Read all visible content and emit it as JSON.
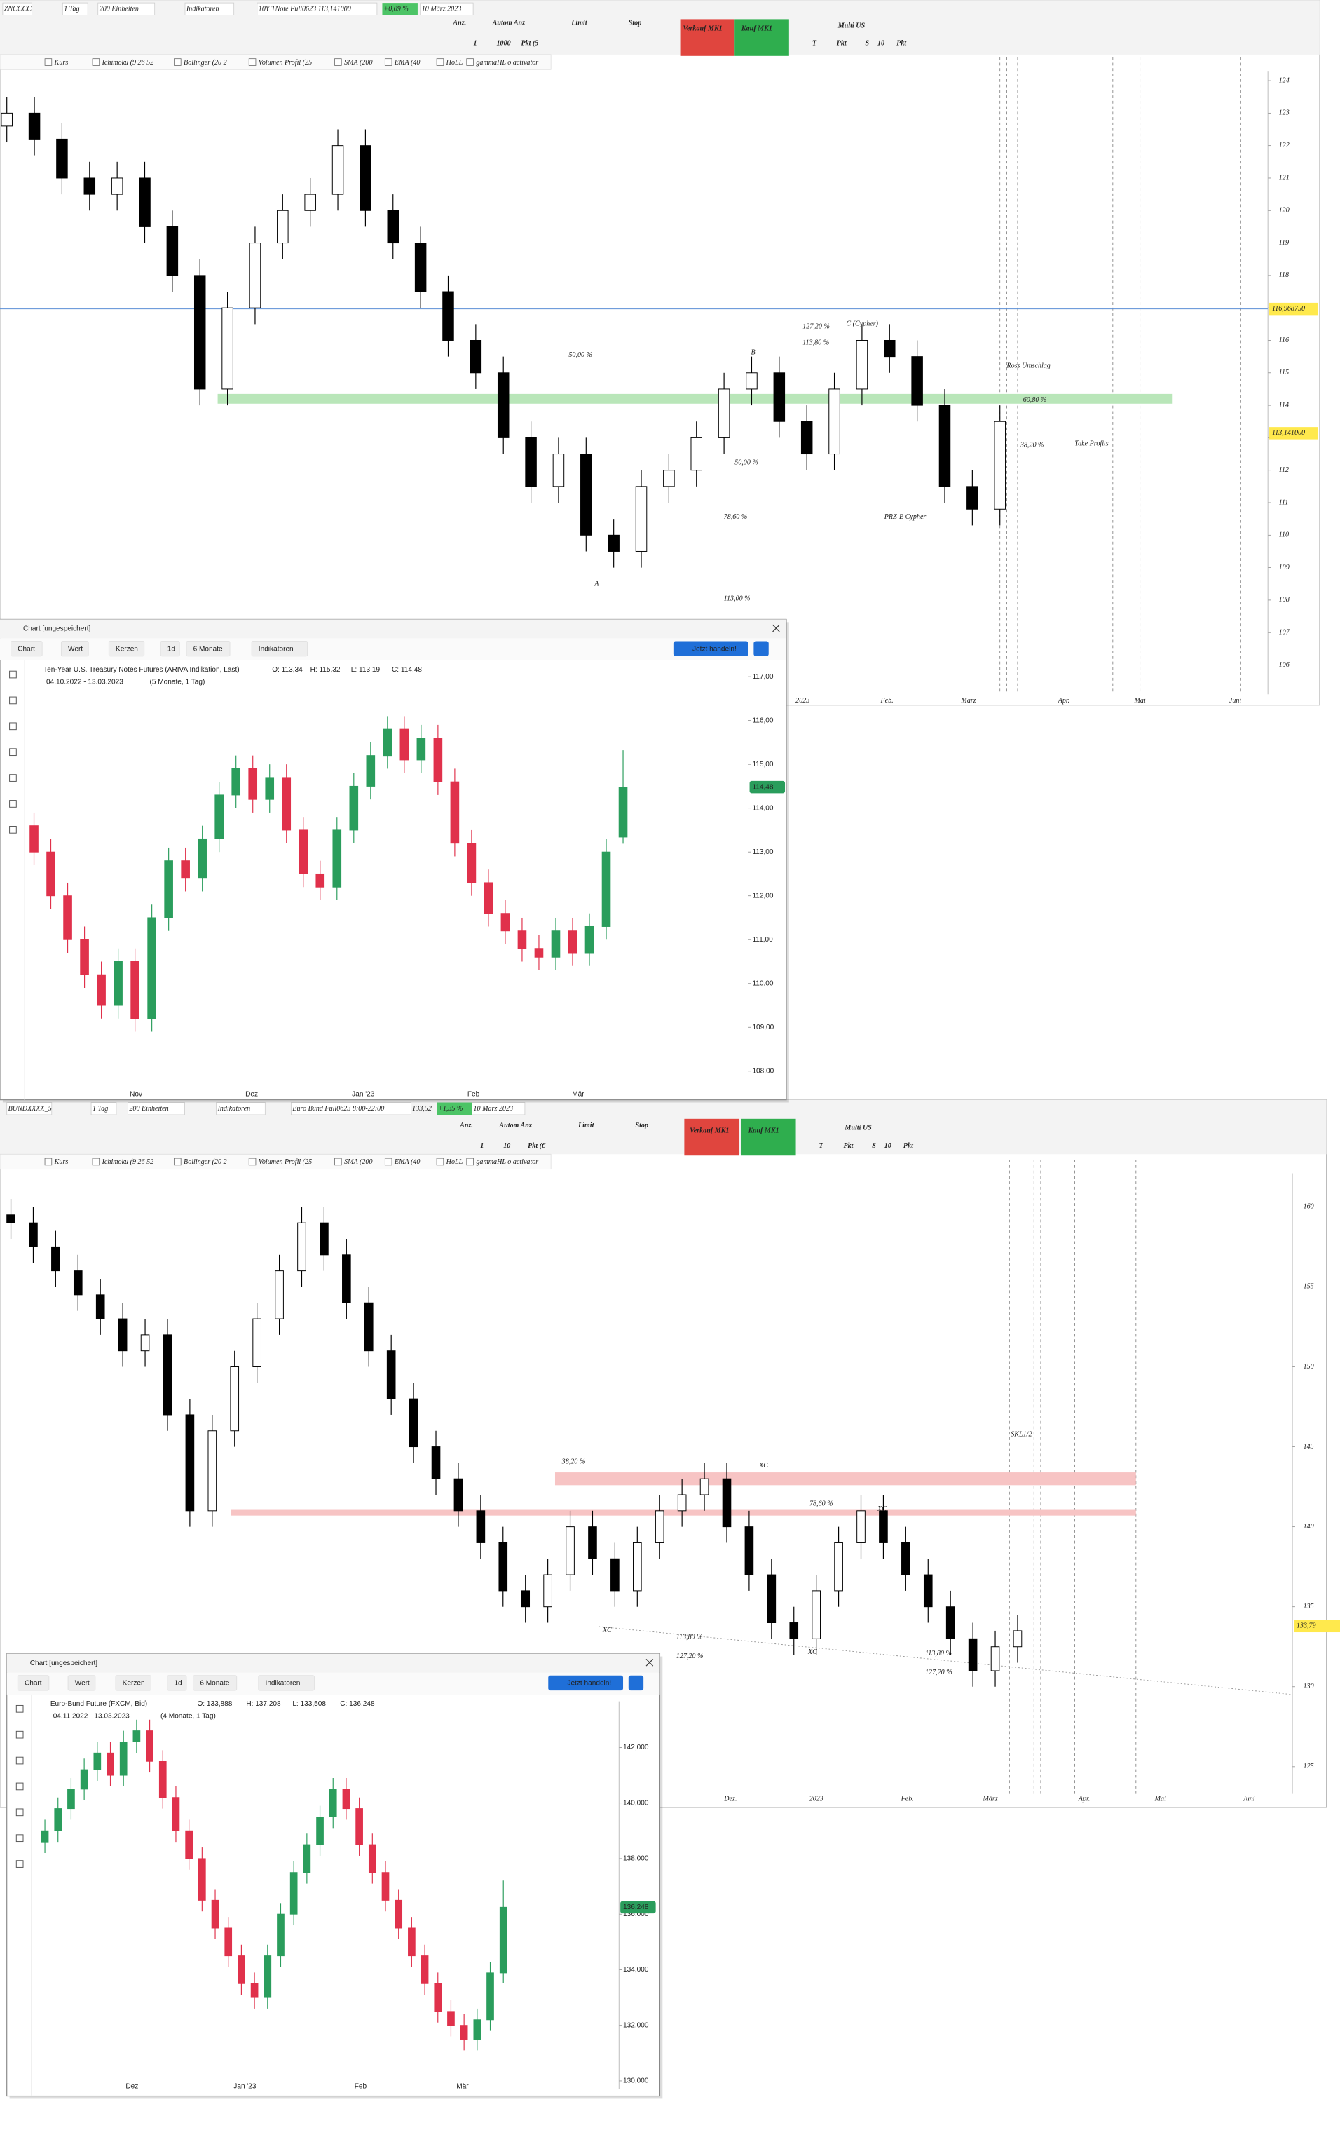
{
  "ui": {
    "panels": [
      {
        "toolbar": [
          "ZNCCCC",
          "1 Tag",
          "200 Einheiten",
          "Indikatoren",
          "10Y TNote Full0623 113,141000",
          "+0,09 %",
          "10 März 2023"
        ],
        "order": [
          "Anz.",
          "Autom Anz",
          "Limit",
          "Stop",
          "Verkauf MK1",
          "Kauf MK1",
          "Multi US",
          "1",
          "1000",
          "Pkt (5",
          "T",
          "Pkt",
          "S",
          "10",
          "Pkt"
        ],
        "indicators": [
          "Kurs",
          "Ichimoku (9 26 52",
          "Bollinger (20 2",
          "Volumen Profil (25",
          "SMA (200",
          "EMA (40",
          "HoLL",
          "gammaHL o activator"
        ]
      },
      {
        "toolbar": [
          "BUNDXXXX_5",
          "1 Tag",
          "200 Einheiten",
          "Indikatoren",
          "Euro Bund Full0623 8:00-22:00",
          "133,52",
          "+1,35 %",
          "10 März 2023"
        ],
        "order": [
          "Anz.",
          "Autom Anz",
          "Limit",
          "Stop",
          "Verkauf MK1",
          "Kauf MK1",
          "Multi US",
          "1",
          "10",
          "Pkt (€",
          "T",
          "Pkt",
          "S",
          "10",
          "Pkt"
        ],
        "indicators": [
          "Kurs",
          "Ichimoku (9 26 52",
          "Bollinger (20 2",
          "Volumen Profil (25",
          "SMA (200",
          "EMA (40",
          "HoLL",
          "gammaHL o activator"
        ]
      }
    ],
    "windows": [
      {
        "title": "Chart [ungespeichert]",
        "buttons": [
          "Chart",
          "Wert",
          "Kerzen",
          "1d",
          "6 Monate",
          "Indikatoren"
        ],
        "action": "Jetzt handeln!",
        "instrument": "Ten-Year U.S. Treasury Notes Futures (ARIVA Indikation, Last)",
        "ohlc": [
          "O: 113,34",
          "H: 115,32",
          "L: 113,19",
          "C: 114,48"
        ],
        "range": "04.10.2022 - 13.03.2023",
        "span": "(5 Monate, 1 Tag)"
      },
      {
        "title": "Chart [ungespeichert]",
        "buttons": [
          "Chart",
          "Wert",
          "Kerzen",
          "1d",
          "6 Monate",
          "Indikatoren"
        ],
        "action": "Jetzt handeln!",
        "instrument": "Euro-Bund Future (FXCM, Bid)",
        "ohlc": [
          "O: 133,888",
          "H: 137,208",
          "L: 133,508",
          "C: 136,248"
        ],
        "range": "04.11.2022 - 13.03.2023",
        "span": "(4 Monate, 1 Tag)"
      }
    ]
  },
  "chart_data": [
    {
      "type": "candlestick",
      "up_color": "#ffffff",
      "down_color": "#000000",
      "zone_color": "#b9e6b9",
      "open": [
        122.6,
        123,
        122.2,
        121,
        120.5,
        121,
        119.5,
        118,
        114.5,
        117,
        119,
        120,
        120.5,
        122,
        120,
        119,
        117.5,
        116,
        115,
        113,
        111.5,
        112.5,
        110,
        109.5,
        111.5,
        112,
        113,
        114.5,
        115,
        113.5,
        112.5,
        114.5,
        116,
        115.5,
        114,
        111.5,
        110.8
      ],
      "high": [
        123.5,
        123.5,
        122.7,
        121.5,
        121.5,
        121.5,
        120,
        118.5,
        117.5,
        119.5,
        120.5,
        121,
        122.5,
        122.5,
        120.5,
        119.5,
        118,
        116.5,
        115.5,
        113.5,
        113,
        113,
        110.5,
        112,
        112.5,
        113.5,
        115,
        115.5,
        115.5,
        114,
        115,
        116.5,
        116.5,
        116,
        114.5,
        112,
        114
      ],
      "low": [
        122.1,
        121.7,
        120.5,
        120,
        120,
        119,
        117.5,
        114,
        114,
        116.5,
        118.5,
        119.5,
        120,
        119.5,
        118.5,
        117,
        115.5,
        114.5,
        112.5,
        111,
        111,
        109.5,
        109,
        109,
        111,
        111.5,
        112.5,
        114,
        113,
        112,
        112,
        114,
        115,
        113.5,
        111,
        110.3,
        110.3
      ],
      "close": [
        123,
        122.2,
        121,
        120.5,
        121,
        119.5,
        118,
        114.5,
        117,
        119,
        120,
        120.5,
        122,
        120,
        119,
        117.5,
        116,
        115,
        113,
        111.5,
        112.5,
        110,
        109.5,
        111.5,
        112,
        113,
        114.5,
        115,
        113.5,
        112.5,
        114.5,
        116,
        115.5,
        114,
        111.5,
        110.8,
        113.5
      ],
      "ylim": [
        105.1,
        124.3
      ],
      "yticks": [
        106,
        107,
        108,
        109,
        110,
        111,
        112,
        113,
        114,
        115,
        116,
        117,
        118,
        119,
        120,
        121,
        122,
        123,
        124
      ],
      "xlabels": [
        "2023",
        "Feb.",
        "März",
        "Apr.",
        "Mai",
        "Juni"
      ],
      "zones": [
        [
          114.05,
          114.35
        ]
      ],
      "cursor": {
        "value": 116.96875,
        "label": "116,968750"
      },
      "last": {
        "value": 113.141,
        "label": "113,141000"
      },
      "annotations": [
        "50,00 %",
        "50,00 %",
        "78,60 %",
        "113,00 %",
        "127,20 %",
        "113,80 %",
        "C (Cypher)",
        "Ross Umschlag",
        "60,80 %",
        "38,20 %",
        "Take Profits",
        "PRZ-E Cypher",
        "A",
        "B"
      ]
    },
    {
      "type": "candlestick",
      "up_color": "#ffffff",
      "down_color": "#000000",
      "zone_color": "#f7c4c4",
      "open": [
        159.5,
        159,
        157.5,
        156,
        154.5,
        153,
        151,
        152,
        147,
        141,
        146,
        150,
        153,
        156,
        159,
        157,
        154,
        151,
        148,
        145,
        143,
        141,
        139,
        136,
        135,
        137,
        140,
        138,
        136,
        139,
        141,
        142,
        143,
        140,
        137,
        134,
        133,
        136,
        139,
        141,
        139,
        137,
        135,
        133,
        131,
        132.5
      ],
      "high": [
        160.5,
        160,
        158.5,
        157,
        155.5,
        154,
        153,
        153,
        148,
        147,
        151,
        154,
        157,
        160,
        160,
        158,
        155,
        152,
        149,
        146,
        144,
        142,
        140,
        137,
        138,
        141,
        141,
        139,
        140,
        142,
        143,
        144,
        144,
        141,
        138,
        135,
        137,
        140,
        142,
        142,
        140,
        138,
        136,
        134,
        133.5,
        134.5
      ],
      "low": [
        158,
        156.5,
        155,
        153.5,
        152,
        150,
        150,
        146,
        140,
        140,
        145,
        149,
        152,
        155,
        156,
        153,
        150,
        147,
        144,
        142,
        140,
        138,
        135,
        134,
        134,
        136,
        137,
        135,
        135,
        138,
        140,
        141,
        139,
        136,
        133,
        132,
        132,
        135,
        138,
        138,
        136,
        134,
        132,
        130,
        130,
        131.5
      ],
      "close": [
        159,
        157.5,
        156,
        154.5,
        153,
        151,
        152,
        147,
        141,
        146,
        150,
        153,
        156,
        159,
        157,
        154,
        151,
        148,
        145,
        143,
        141,
        139,
        136,
        135,
        137,
        140,
        138,
        136,
        139,
        141,
        142,
        143,
        140,
        137,
        134,
        133,
        136,
        139,
        141,
        139,
        137,
        135,
        133,
        131,
        132.5,
        133.5
      ],
      "ylim": [
        123.3,
        162.1
      ],
      "yticks": [
        125,
        130,
        135,
        140,
        145,
        150,
        155,
        160
      ],
      "xlabels": [
        "Dez.",
        "2023",
        "Feb.",
        "März",
        "Apr.",
        "Mai",
        "Juni"
      ],
      "zones": [
        [
          142.6,
          143.4
        ],
        [
          140.7,
          141.1
        ]
      ],
      "last": {
        "value": 133.79,
        "label": "133,79"
      },
      "annotations": [
        "38,20 %",
        "78,60 %",
        "113,80 %",
        "127,20 %",
        "113,80 %",
        "127,20 %",
        "SKL1/2",
        "XC",
        "XC",
        "XC",
        "XC"
      ]
    },
    {
      "type": "candlestick",
      "up_color": "#2a9d5c",
      "down_color": "#e0314b",
      "open": [
        113.6,
        113,
        112,
        111,
        110.2,
        109.5,
        110.5,
        109.2,
        111.5,
        112.8,
        112.4,
        113.3,
        114.3,
        114.9,
        114.2,
        114.7,
        113.5,
        112.5,
        112.2,
        113.5,
        114.5,
        115.2,
        115.8,
        115.1,
        115.6,
        114.6,
        113.2,
        112.3,
        111.6,
        111.2,
        110.8,
        110.6,
        111.2,
        110.7,
        111.3,
        113.34
      ],
      "high": [
        113.9,
        113.3,
        112.3,
        111.3,
        110.5,
        110.8,
        110.8,
        111.8,
        113.1,
        113.1,
        113.6,
        114.6,
        115.2,
        115.2,
        115,
        115,
        113.8,
        112.8,
        113.8,
        114.8,
        115.5,
        116.1,
        116.1,
        115.9,
        115.9,
        114.9,
        113.5,
        112.6,
        111.9,
        111.5,
        111.1,
        111.5,
        111.5,
        111.6,
        113.3,
        115.32
      ],
      "low": [
        112.7,
        111.7,
        110.7,
        109.9,
        109.2,
        109.2,
        108.9,
        108.9,
        111.2,
        112.1,
        112.1,
        113,
        114,
        113.9,
        113.9,
        113.2,
        112.2,
        111.9,
        111.9,
        113.2,
        114.2,
        114.9,
        114.8,
        114.8,
        114.3,
        112.9,
        112,
        111.3,
        110.9,
        110.5,
        110.3,
        110.3,
        110.4,
        110.4,
        111,
        113.19
      ],
      "close": [
        113,
        112,
        111,
        110.2,
        109.5,
        110.5,
        109.2,
        111.5,
        112.8,
        112.4,
        113.3,
        114.3,
        114.9,
        114.2,
        114.7,
        113.5,
        112.5,
        112.2,
        113.5,
        114.5,
        115.2,
        115.8,
        115.1,
        115.6,
        114.6,
        113.2,
        112.3,
        111.6,
        111.2,
        110.8,
        110.6,
        111.2,
        110.7,
        111.3,
        113,
        114.48
      ],
      "ylim": [
        107.75,
        117.22
      ],
      "yticks": [
        {
          "value": 108,
          "label": "108,00"
        },
        {
          "value": 109,
          "label": "109,00"
        },
        {
          "value": 110,
          "label": "110,00"
        },
        {
          "value": 111,
          "label": "111,00"
        },
        {
          "value": 112,
          "label": "112,00"
        },
        {
          "value": 113,
          "label": "113,00"
        },
        {
          "value": 114,
          "label": "114,00"
        },
        {
          "value": 115,
          "label": "115,00"
        },
        {
          "value": 116,
          "label": "116,00"
        },
        {
          "value": 117,
          "label": "117,00"
        }
      ],
      "xlabels": [
        "Nov",
        "Dez",
        "Jan '23",
        "Feb",
        "Mär"
      ],
      "last": {
        "value": 114.48,
        "label": "114,48"
      }
    },
    {
      "type": "candlestick",
      "up_color": "#2a9d5c",
      "down_color": "#e0314b",
      "open": [
        138.6,
        139,
        139.8,
        140.5,
        141.2,
        141.8,
        141,
        142.2,
        142.6,
        141.5,
        140.2,
        139,
        138,
        136.5,
        135.5,
        134.5,
        133.5,
        133,
        134.5,
        136,
        137.5,
        138.5,
        139.5,
        140.5,
        139.8,
        138.5,
        137.5,
        136.5,
        135.5,
        134.5,
        133.5,
        132.5,
        132,
        131.5,
        132.2,
        133.888
      ],
      "high": [
        139.4,
        140.2,
        140.9,
        141.6,
        142.2,
        142.2,
        142.6,
        143,
        143,
        141.9,
        140.6,
        139.4,
        138.4,
        136.9,
        135.9,
        134.9,
        133.9,
        134.9,
        136.4,
        137.9,
        138.9,
        139.9,
        140.9,
        140.9,
        140.2,
        138.9,
        137.9,
        136.9,
        135.9,
        134.9,
        133.9,
        132.9,
        132.4,
        132.6,
        134.288,
        137.208
      ],
      "low": [
        138.2,
        138.6,
        139.4,
        140.1,
        140.8,
        140.6,
        140.6,
        141.8,
        141.1,
        139.8,
        138.6,
        137.6,
        136.1,
        135.1,
        134.1,
        133.1,
        132.6,
        132.6,
        134.1,
        135.6,
        137.1,
        138.1,
        139.1,
        139.4,
        138.1,
        137.1,
        136.1,
        135.1,
        134.1,
        133.1,
        132.1,
        131.6,
        131.1,
        131.1,
        131.8,
        133.508
      ],
      "close": [
        139,
        139.8,
        140.5,
        141.2,
        141.8,
        141,
        142.2,
        142.6,
        141.5,
        140.2,
        139,
        138,
        136.5,
        135.5,
        134.5,
        133.5,
        133,
        134.5,
        136,
        137.5,
        138.5,
        139.5,
        140.5,
        139.8,
        138.5,
        137.5,
        136.5,
        135.5,
        134.5,
        133.5,
        132.5,
        132,
        131.5,
        132.2,
        133.888,
        136.248
      ],
      "ylim": [
        129.7,
        143.66
      ],
      "yticks": [
        {
          "value": 130,
          "label": "130,000"
        },
        {
          "value": 132,
          "label": "132,000"
        },
        {
          "value": 134,
          "label": "134,000"
        },
        {
          "value": 136,
          "label": "136,000"
        },
        {
          "value": 138,
          "label": "138,000"
        },
        {
          "value": 140,
          "label": "140,000"
        },
        {
          "value": 142,
          "label": "142,000"
        }
      ],
      "xlabels": [
        "Dez",
        "Jan '23",
        "Feb",
        "Mär"
      ],
      "last": {
        "value": 136.248,
        "label": "136,248"
      }
    }
  ]
}
